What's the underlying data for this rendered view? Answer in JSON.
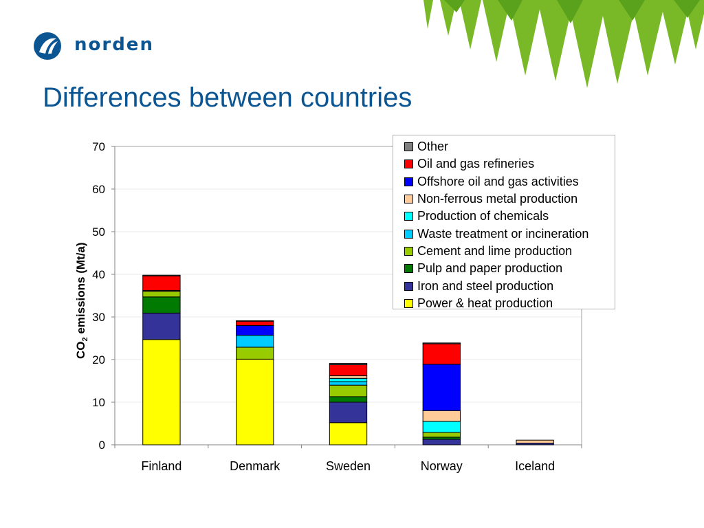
{
  "logo": {
    "text": "norden"
  },
  "slide": {
    "title": "Differences between countries"
  },
  "chart_data": {
    "type": "bar",
    "stacked": true,
    "title": "",
    "xlabel": "",
    "ylabel": {
      "main": "CO",
      "sub": "2",
      "rest": " emissions (Mt/a)"
    },
    "ylim": [
      0,
      70
    ],
    "yticks": [
      0,
      10,
      20,
      30,
      40,
      50,
      60,
      70
    ],
    "grid": true,
    "legend_position": "top-right",
    "categories": [
      "Finland",
      "Denmark",
      "Sweden",
      "Norway",
      "Iceland"
    ],
    "series": [
      {
        "name": "Power & heat production",
        "color": "#ffff00",
        "values": [
          24.7,
          20.1,
          5.2,
          0,
          0
        ]
      },
      {
        "name": "Iron and steel production",
        "color": "#333399",
        "values": [
          6.2,
          0,
          4.8,
          1.3,
          0.4
        ]
      },
      {
        "name": "Pulp and paper production",
        "color": "#007a00",
        "values": [
          3.8,
          0,
          1.3,
          0.5,
          0
        ]
      },
      {
        "name": "Cement and lime production",
        "color": "#99cc00",
        "values": [
          1.3,
          2.8,
          2.7,
          1.1,
          0
        ]
      },
      {
        "name": "Waste treatment or incineration",
        "color": "#00ccff",
        "values": [
          0,
          2.8,
          0.8,
          0,
          0
        ]
      },
      {
        "name": "Production of chemicals",
        "color": "#00ffff",
        "values": [
          0,
          0,
          0.8,
          2.6,
          0
        ]
      },
      {
        "name": "Non-ferrous metal production",
        "color": "#ffcc99",
        "values": [
          0.2,
          0,
          0.6,
          2.5,
          0.7
        ]
      },
      {
        "name": "Offshore oil and gas activities",
        "color": "#0000ff",
        "values": [
          0,
          2.3,
          0,
          10.9,
          0
        ]
      },
      {
        "name": "Oil and gas refineries",
        "color": "#ff0000",
        "values": [
          3.4,
          1.0,
          2.6,
          4.8,
          0
        ]
      },
      {
        "name": "Other",
        "color": "#808080",
        "values": [
          0.2,
          0.1,
          0.3,
          0.2,
          0
        ]
      }
    ]
  }
}
